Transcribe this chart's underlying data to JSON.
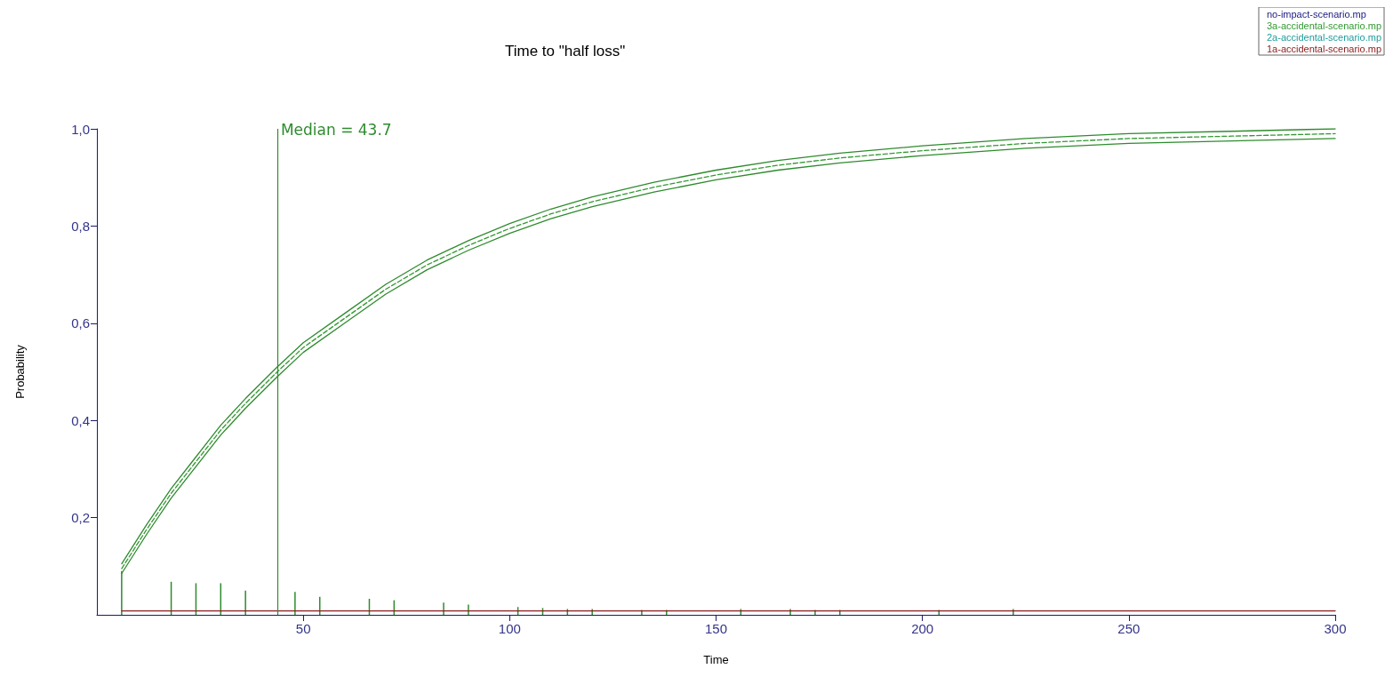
{
  "chart_data": {
    "type": "line",
    "title": "Time to \"half loss\"",
    "xlabel": "Time",
    "ylabel": "Probability",
    "xlim": [
      0,
      300
    ],
    "xticks": [
      50,
      100,
      150,
      200,
      250,
      300
    ],
    "ylim": [
      0,
      1
    ],
    "yticks": [
      {
        "value": 0.2,
        "label": "0,2"
      },
      {
        "value": 0.4,
        "label": "0,4"
      },
      {
        "value": 0.6,
        "label": "0,6"
      },
      {
        "value": 0.8,
        "label": "0,8"
      },
      {
        "value": 1,
        "label": "1,0"
      }
    ],
    "grid": false,
    "legend": "top right",
    "marker": "none",
    "ref_lines": [
      {
        "axis": "x",
        "value": 43.7,
        "label": "Median = 43.7",
        "color": "#2e8b2e"
      }
    ],
    "series": [
      {
        "name": "no-impact-scenario.mp",
        "color": "#1a1a80"
      },
      {
        "name": "3a-accidental-scenario.mp",
        "color": "#339933",
        "line_style": "dashed",
        "x": [
          6,
          12,
          18,
          24,
          30,
          36,
          43.7,
          50,
          60,
          70,
          80,
          90,
          100,
          110,
          120,
          135,
          150,
          165,
          180,
          200,
          225,
          250,
          275,
          300
        ],
        "values": [
          0.095,
          0.175,
          0.25,
          0.315,
          0.38,
          0.435,
          0.5,
          0.55,
          0.61,
          0.67,
          0.72,
          0.76,
          0.795,
          0.825,
          0.85,
          0.88,
          0.905,
          0.925,
          0.94,
          0.955,
          0.97,
          0.98,
          0.985,
          0.99
        ]
      },
      {
        "color": "#2e8b2e",
        "line_style": "solid",
        "x": [
          6,
          12,
          18,
          24,
          30,
          36,
          43.7,
          50,
          60,
          70,
          80,
          90,
          100,
          110,
          120,
          135,
          150,
          165,
          180,
          200,
          225,
          250,
          275,
          300
        ],
        "values": [
          0.085,
          0.165,
          0.24,
          0.305,
          0.37,
          0.425,
          0.49,
          0.54,
          0.6,
          0.66,
          0.71,
          0.75,
          0.785,
          0.815,
          0.84,
          0.87,
          0.895,
          0.915,
          0.93,
          0.945,
          0.96,
          0.97,
          0.975,
          0.98
        ]
      },
      {
        "color": "#2e8b2e",
        "line_style": "solid",
        "x": [
          6,
          12,
          18,
          24,
          30,
          36,
          43.7,
          50,
          60,
          70,
          80,
          90,
          100,
          110,
          120,
          135,
          150,
          165,
          180,
          200,
          225,
          250,
          275,
          300
        ],
        "values": [
          0.105,
          0.185,
          0.26,
          0.325,
          0.39,
          0.445,
          0.51,
          0.56,
          0.62,
          0.68,
          0.73,
          0.77,
          0.805,
          0.835,
          0.86,
          0.89,
          0.915,
          0.935,
          0.95,
          0.965,
          0.98,
          0.99,
          0.995,
          1.0
        ]
      },
      {
        "name": "2a-accidental-scenario.mp",
        "color": "#1f9c9c"
      },
      {
        "name": "1a-accidental-scenario.mp",
        "color": "#8b1a1a",
        "line_style": "solid",
        "x": [
          6,
          300
        ],
        "values": [
          0.008,
          0.008
        ]
      },
      {
        "type": "bar",
        "color": "#2e8b2e",
        "x": [
          6,
          18,
          24,
          30,
          36,
          48,
          54,
          66,
          72,
          84,
          90,
          102,
          108,
          114,
          120,
          132,
          138,
          156,
          168,
          174,
          180,
          186,
          204,
          222
        ],
        "values": [
          0.09,
          0.068,
          0.065,
          0.065,
          0.05,
          0.047,
          0.037,
          0.033,
          0.03,
          0.025,
          0.021,
          0.016,
          0.014,
          0.012,
          0.012,
          0.01,
          0.01,
          0.012,
          0.012,
          0.01,
          0.01,
          null,
          0.01,
          0.012
        ]
      }
    ]
  }
}
